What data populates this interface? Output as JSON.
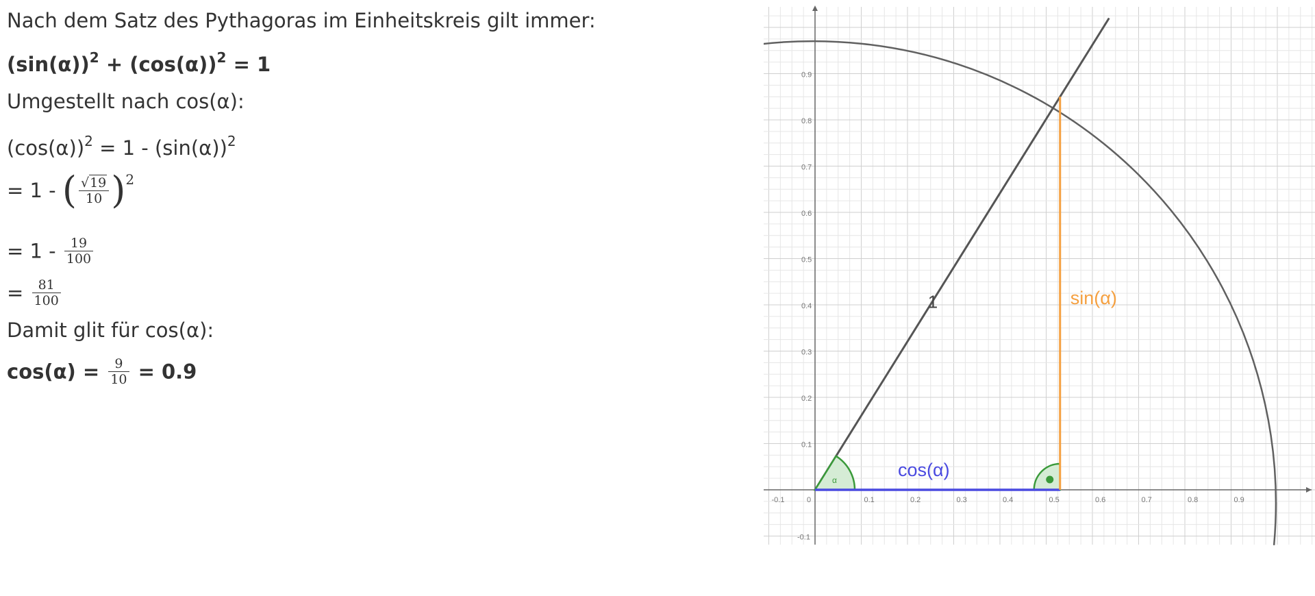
{
  "explanation": {
    "intro": "Nach dem Satz des Pythagoras im Einheitskreis gilt immer:",
    "identity": {
      "sin_part": "(sin(α))",
      "plus": " + ",
      "cos_part": "(cos(α))",
      "exp": "2",
      "equals": " = 1"
    },
    "rearranged_label": "Umgestellt nach cos(α):",
    "step1": {
      "lhs": "(cos(α))",
      "exp": "2",
      "mid": " = 1 - (sin(α))",
      "exp2": "2"
    },
    "step2": {
      "prefix": "= 1 - ",
      "sqrt_symbol": "√",
      "radicand": "19",
      "denominator": "10",
      "exp": "2"
    },
    "step3": {
      "prefix": "= 1 - ",
      "numerator": "19",
      "denominator": "100"
    },
    "step4": {
      "prefix": "= ",
      "numerator": "81",
      "denominator": "100"
    },
    "conclusion_label": "Damit glit für cos(α):",
    "result": {
      "prefix": "cos(α) = ",
      "numerator": "9",
      "denominator": "10",
      "suffix": " = 0.9"
    }
  },
  "diagram": {
    "x_ticks": [
      "-0.1",
      "0",
      "0.1",
      "0.2",
      "0.3",
      "0.4",
      "0.5",
      "0.6",
      "0.7",
      "0.8",
      "0.9"
    ],
    "y_ticks": [
      "0.9",
      "0.8",
      "0.7",
      "0.6",
      "0.5",
      "0.4",
      "0.3",
      "0.2",
      "0.1",
      "-0.1"
    ],
    "hypotenuse_label": "1",
    "sin_label": "sin(α)",
    "cos_label": "cos(α)",
    "angle_label": "α",
    "angle_cos": 0.53,
    "angle_sin": 0.85,
    "colors": {
      "circle": "#606060",
      "hypotenuse": "#555555",
      "sin": "#f5a040",
      "cos": "#4a4ae0",
      "angle": "#3a9a3a",
      "angle_fill": "#d5ecd5",
      "grid_minor": "#e6e6e6",
      "grid_major": "#cfcfcf",
      "axis": "#666666"
    }
  }
}
